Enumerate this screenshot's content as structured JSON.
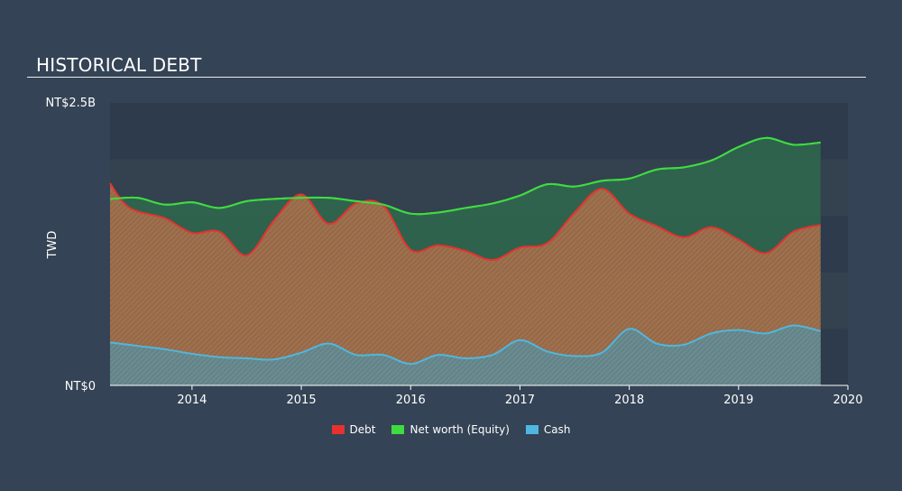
{
  "title": "HISTORICAL DEBT",
  "chart_data": {
    "type": "area",
    "ylabel": "TWD",
    "y_tick_labels": [
      "NT$2.5B",
      "NT$0"
    ],
    "ylim": [
      0,
      2.5
    ],
    "xlim": [
      2013.25,
      2020.0
    ],
    "x_ticks": [
      2014,
      2015,
      2016,
      2017,
      2018,
      2019,
      2020
    ],
    "x_tick_labels": [
      "2014",
      "2015",
      "2016",
      "2017",
      "2018",
      "2019",
      "2020"
    ],
    "grid": true,
    "legend_position": "bottom-center",
    "series": [
      {
        "name": "Debt",
        "color": "#e5322e",
        "fill": "#a46a47",
        "x": [
          2013.25,
          2013.37,
          2013.5,
          2013.75,
          2014.0,
          2014.25,
          2014.5,
          2014.75,
          2015.0,
          2015.25,
          2015.5,
          2015.75,
          2016.0,
          2016.25,
          2016.5,
          2016.75,
          2017.0,
          2017.25,
          2017.5,
          2017.75,
          2018.0,
          2018.25,
          2018.5,
          2018.75,
          2019.0,
          2019.25,
          2019.5,
          2019.75
        ],
        "values": [
          1.79,
          1.62,
          1.54,
          1.48,
          1.35,
          1.36,
          1.15,
          1.46,
          1.69,
          1.43,
          1.61,
          1.59,
          1.2,
          1.24,
          1.19,
          1.11,
          1.22,
          1.26,
          1.53,
          1.74,
          1.52,
          1.41,
          1.31,
          1.4,
          1.29,
          1.17,
          1.36,
          1.42
        ]
      },
      {
        "name": "Net worth (Equity)",
        "color": "#3fdc3f",
        "fill": "#2f6a4e",
        "x": [
          2013.25,
          2013.5,
          2013.75,
          2014.0,
          2014.25,
          2014.5,
          2014.75,
          2015.0,
          2015.25,
          2015.5,
          2015.75,
          2016.0,
          2016.25,
          2016.5,
          2016.75,
          2017.0,
          2017.25,
          2017.5,
          2017.75,
          2018.0,
          2018.25,
          2018.5,
          2018.75,
          2019.0,
          2019.25,
          2019.5,
          2019.75
        ],
        "values": [
          1.65,
          1.66,
          1.6,
          1.62,
          1.57,
          1.63,
          1.65,
          1.66,
          1.66,
          1.63,
          1.6,
          1.52,
          1.53,
          1.57,
          1.61,
          1.68,
          1.78,
          1.76,
          1.81,
          1.83,
          1.91,
          1.93,
          1.99,
          2.11,
          2.19,
          2.13,
          2.15
        ]
      },
      {
        "name": "Cash",
        "color": "#4fb7df",
        "fill": "#5d8790",
        "x": [
          2013.25,
          2013.5,
          2013.75,
          2014.0,
          2014.25,
          2014.5,
          2014.75,
          2015.0,
          2015.25,
          2015.5,
          2015.75,
          2016.0,
          2016.25,
          2016.5,
          2016.75,
          2017.0,
          2017.25,
          2017.5,
          2017.75,
          2018.0,
          2018.25,
          2018.5,
          2018.75,
          2019.0,
          2019.25,
          2019.5,
          2019.75
        ],
        "values": [
          0.38,
          0.35,
          0.32,
          0.28,
          0.25,
          0.24,
          0.23,
          0.29,
          0.37,
          0.27,
          0.27,
          0.19,
          0.27,
          0.24,
          0.27,
          0.4,
          0.3,
          0.26,
          0.29,
          0.5,
          0.37,
          0.36,
          0.46,
          0.49,
          0.46,
          0.53,
          0.48
        ]
      }
    ]
  }
}
